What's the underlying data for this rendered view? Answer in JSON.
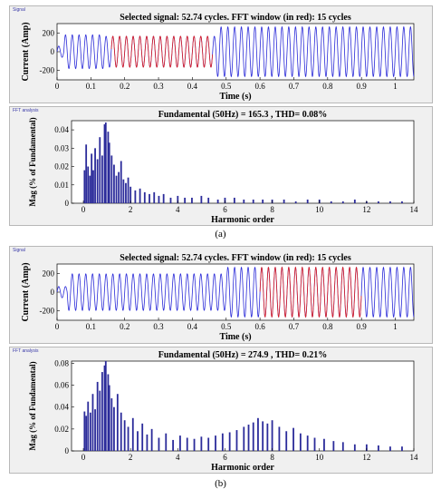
{
  "figures": [
    {
      "caption": "(a)",
      "signal_panel_label": "Signal",
      "fft_panel_label": "FFT analysis",
      "signal_plot": {
        "title": "Selected signal: 52.74 cycles. FFT window (in red): 15 cycles",
        "xlabel": "Time (s)",
        "ylabel": "Current (Amp)",
        "xticks": [
          "0",
          "0.1",
          "0.2",
          "0.3",
          "0.4",
          "0.5",
          "0.6",
          "0.7",
          "0.8",
          "0.9",
          "1"
        ],
        "yticks": [
          "-200",
          "0",
          "200"
        ]
      },
      "fft_plot": {
        "title": "Fundamental (50Hz) = 165.3 , THD= 0.08%",
        "xlabel": "Harmonic order",
        "ylabel": "Mag (% of Fundamental)",
        "xticks": [
          "0",
          "2",
          "4",
          "6",
          "8",
          "10",
          "12",
          "14"
        ],
        "yticks": [
          "0",
          "0.01",
          "0.02",
          "0.03",
          "0.04"
        ]
      }
    },
    {
      "caption": "(b)",
      "signal_panel_label": "Signal",
      "fft_panel_label": "FFT analysis",
      "signal_plot": {
        "title": "Selected signal: 52.74 cycles. FFT window (in red): 15 cycles",
        "xlabel": "Time (s)",
        "ylabel": "Current (Amp)",
        "xticks": [
          "0",
          "0.1",
          "0.2",
          "0.3",
          "0.4",
          "0.5",
          "0.6",
          "0.7",
          "0.8",
          "0.9",
          "1"
        ],
        "yticks": [
          "-200",
          "0",
          "200"
        ]
      },
      "fft_plot": {
        "title": "Fundamental (50Hz) = 274.9 , THD= 0.21%",
        "xlabel": "Harmonic order",
        "ylabel": "Mag (% of Fundamental)",
        "xticks": [
          "0",
          "2",
          "4",
          "6",
          "8",
          "10",
          "12",
          "14"
        ],
        "yticks": [
          "0",
          "0.02",
          "0.04",
          "0.06",
          "0.08"
        ]
      }
    }
  ],
  "colors": {
    "signal": "#2a2ad8",
    "fft_window": "#e02020",
    "bars": "#2b2b9a",
    "axes": "#000000",
    "panel_bg": "#f0f0f0"
  },
  "chart_data": [
    {
      "type": "line",
      "xlabel": "Time (s)",
      "ylabel": "Current (Amp)",
      "xlim": [
        0,
        1.0548
      ],
      "ylim": [
        -300,
        300
      ],
      "frequency_hz": 50,
      "segments": [
        {
          "t_start": 0,
          "t_end": 0.02,
          "amplitude": 60
        },
        {
          "t_start": 0.02,
          "t_end": 0.14,
          "amplitude": 180
        },
        {
          "t_start": 0.14,
          "t_end": 0.47,
          "amplitude": 165
        },
        {
          "t_start": 0.47,
          "t_end": 1.0548,
          "amplitude": 265
        }
      ],
      "fft_window": [
        0.16,
        0.46
      ]
    },
    {
      "type": "bar",
      "title": "Fundamental (50Hz) = 165.3 , THD= 0.08%",
      "xlabel": "Harmonic order",
      "ylabel": "Mag (% of Fundamental)",
      "xlim": [
        -0.5,
        14
      ],
      "ylim": [
        0,
        0.045
      ],
      "x": [
        0.05,
        0.12,
        0.2,
        0.28,
        0.35,
        0.42,
        0.5,
        0.6,
        0.7,
        0.8,
        0.9,
        0.95,
        1.05,
        1.1,
        1.2,
        1.3,
        1.4,
        1.5,
        1.6,
        1.7,
        1.8,
        1.9,
        2.0,
        2.2,
        2.4,
        2.6,
        2.8,
        3.0,
        3.2,
        3.4,
        3.7,
        4.0,
        4.3,
        4.6,
        5.0,
        5.3,
        5.7,
        6.0,
        6.4,
        6.8,
        7.2,
        7.6,
        8.0,
        8.5,
        9.0,
        9.5,
        10.0,
        10.5,
        11.0,
        11.5,
        12.0,
        12.5,
        13.0,
        13.5
      ],
      "values": [
        0.018,
        0.032,
        0.02,
        0.015,
        0.027,
        0.018,
        0.03,
        0.024,
        0.036,
        0.026,
        0.043,
        0.044,
        0.039,
        0.033,
        0.026,
        0.021,
        0.015,
        0.017,
        0.023,
        0.013,
        0.011,
        0.014,
        0.009,
        0.007,
        0.008,
        0.006,
        0.005,
        0.006,
        0.004,
        0.005,
        0.003,
        0.004,
        0.003,
        0.003,
        0.004,
        0.003,
        0.002,
        0.003,
        0.003,
        0.002,
        0.002,
        0.002,
        0.002,
        0.002,
        0.001,
        0.002,
        0.002,
        0.001,
        0.001,
        0.002,
        0.001,
        0.001,
        0.001,
        0.001
      ]
    },
    {
      "type": "line",
      "xlabel": "Time (s)",
      "ylabel": "Current (Amp)",
      "xlim": [
        0,
        1.0548
      ],
      "ylim": [
        -300,
        300
      ],
      "frequency_hz": 50,
      "segments": [
        {
          "t_start": 0,
          "t_end": 0.03,
          "amplitude": 60
        },
        {
          "t_start": 0.03,
          "t_end": 0.5,
          "amplitude": 195
        },
        {
          "t_start": 0.5,
          "t_end": 1.0548,
          "amplitude": 265
        }
      ],
      "fft_window": [
        0.6,
        0.9
      ]
    },
    {
      "type": "bar",
      "title": "Fundamental (50Hz) = 274.9 , THD= 0.21%",
      "xlabel": "Harmonic order",
      "ylabel": "Mag (% of Fundamental)",
      "xlim": [
        -0.5,
        14
      ],
      "ylim": [
        0,
        0.082
      ],
      "x": [
        0.05,
        0.12,
        0.2,
        0.3,
        0.4,
        0.5,
        0.6,
        0.7,
        0.8,
        0.9,
        0.95,
        1.05,
        1.1,
        1.2,
        1.3,
        1.45,
        1.6,
        1.75,
        1.9,
        2.1,
        2.3,
        2.5,
        2.7,
        2.9,
        3.2,
        3.5,
        3.8,
        4.1,
        4.4,
        4.7,
        5.0,
        5.3,
        5.6,
        5.9,
        6.2,
        6.5,
        6.8,
        7.0,
        7.2,
        7.4,
        7.6,
        7.8,
        8.0,
        8.3,
        8.6,
        8.9,
        9.2,
        9.5,
        9.8,
        10.2,
        10.6,
        11.0,
        11.5,
        12.0,
        12.5,
        13.0,
        13.5
      ],
      "values": [
        0.036,
        0.032,
        0.045,
        0.035,
        0.052,
        0.038,
        0.063,
        0.055,
        0.072,
        0.078,
        0.082,
        0.07,
        0.06,
        0.048,
        0.04,
        0.052,
        0.035,
        0.028,
        0.022,
        0.03,
        0.018,
        0.025,
        0.015,
        0.02,
        0.012,
        0.016,
        0.01,
        0.014,
        0.012,
        0.011,
        0.013,
        0.012,
        0.014,
        0.016,
        0.017,
        0.019,
        0.022,
        0.024,
        0.026,
        0.03,
        0.027,
        0.025,
        0.028,
        0.022,
        0.018,
        0.021,
        0.016,
        0.014,
        0.012,
        0.011,
        0.009,
        0.008,
        0.006,
        0.006,
        0.005,
        0.004,
        0.004
      ]
    }
  ]
}
